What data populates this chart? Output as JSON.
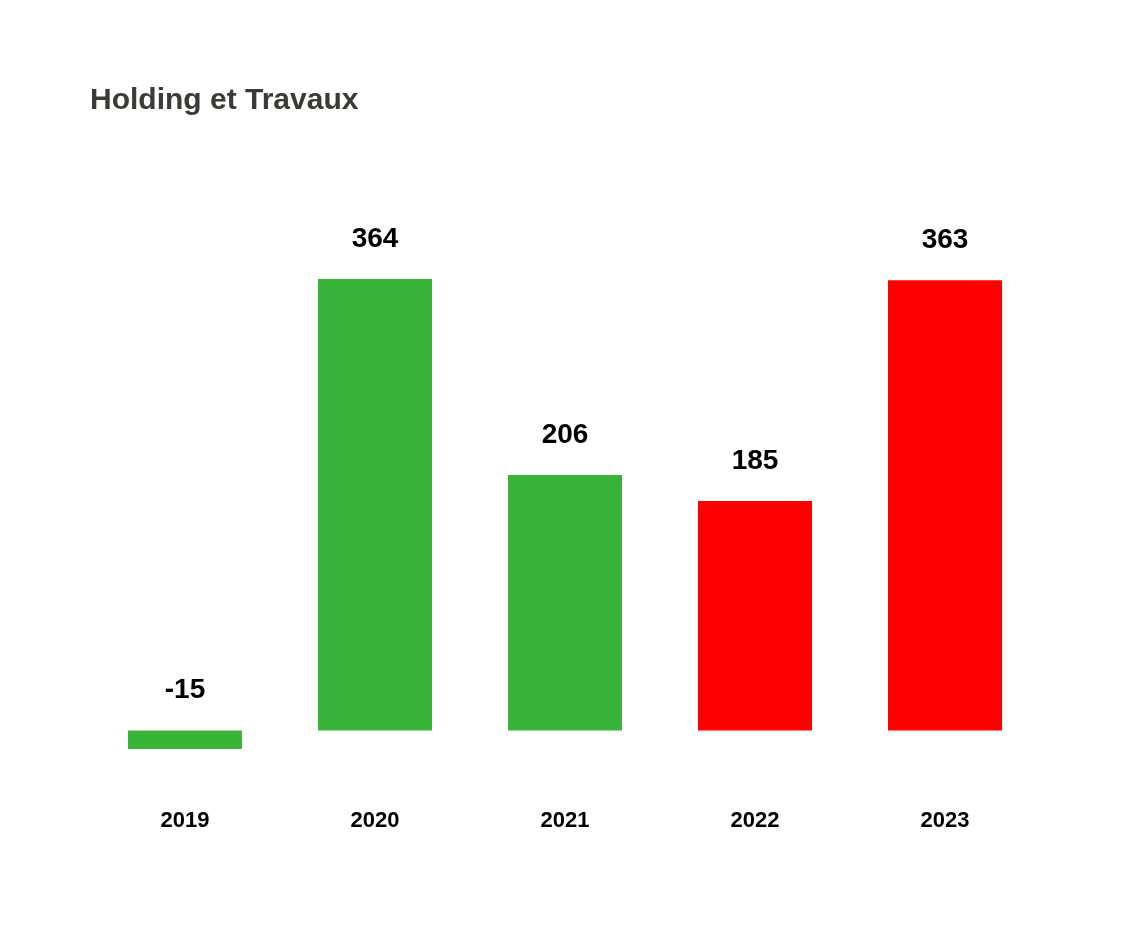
{
  "chart_data": {
    "type": "bar",
    "title": "Holding et Travaux",
    "categories": [
      "2019",
      "2020",
      "2021",
      "2022",
      "2023"
    ],
    "values": [
      -15,
      364,
      206,
      185,
      363
    ],
    "colors": [
      "#37b337",
      "#37b337",
      "#37b337",
      "#ff0000",
      "#ff0000"
    ],
    "data_labels": true,
    "legend": false
  }
}
